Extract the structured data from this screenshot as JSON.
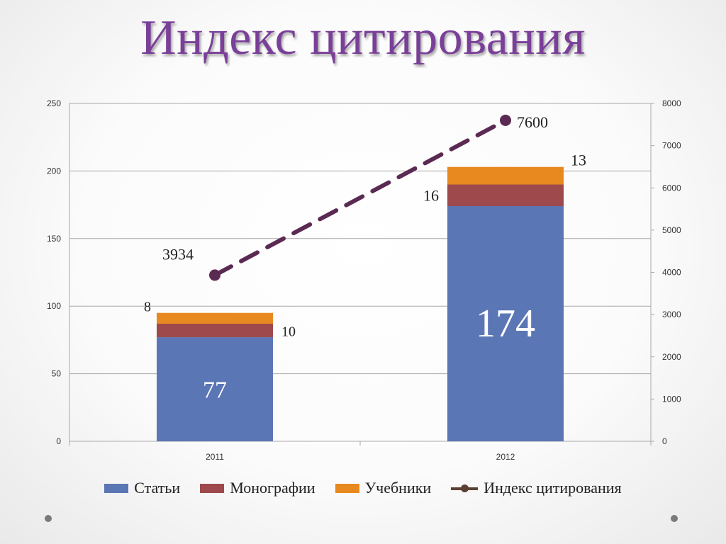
{
  "slide": {
    "title": "Индекс цитирования"
  },
  "colors": {
    "series_1": "#5b76b5",
    "series_2": "#9e4a4c",
    "series_3": "#e8891f",
    "series_4": "#5b2a52",
    "grid": "#a8a8a8",
    "title": "#7a3f98"
  },
  "chart_data": {
    "type": "bar",
    "subtype": "stacked-with-line",
    "categories": [
      "2011",
      "2012"
    ],
    "series": [
      {
        "name": "Статьи",
        "values": [
          77,
          174
        ],
        "axis": "left"
      },
      {
        "name": "Монографии",
        "values": [
          10,
          16
        ],
        "axis": "left"
      },
      {
        "name": "Учебники",
        "values": [
          8,
          13
        ],
        "axis": "left"
      },
      {
        "name": "Индекс цитирования",
        "values": [
          3934,
          7600
        ],
        "axis": "right",
        "type": "line"
      }
    ],
    "ylim": [
      0,
      250
    ],
    "y2lim": [
      0,
      8000
    ],
    "yticks": [
      "0",
      "50",
      "100",
      "150",
      "200",
      "250"
    ],
    "y2ticks": [
      "0",
      "1000",
      "2000",
      "3000",
      "4000",
      "5000",
      "6000",
      "7000",
      "8000"
    ],
    "data_labels": [
      {
        "text": "77"
      },
      {
        "text": "174"
      },
      {
        "text": "10"
      },
      {
        "text": "16"
      },
      {
        "text": "8"
      },
      {
        "text": "13"
      },
      {
        "text": "3934"
      },
      {
        "text": "7600"
      }
    ],
    "grid": true,
    "legend": "bottom"
  }
}
